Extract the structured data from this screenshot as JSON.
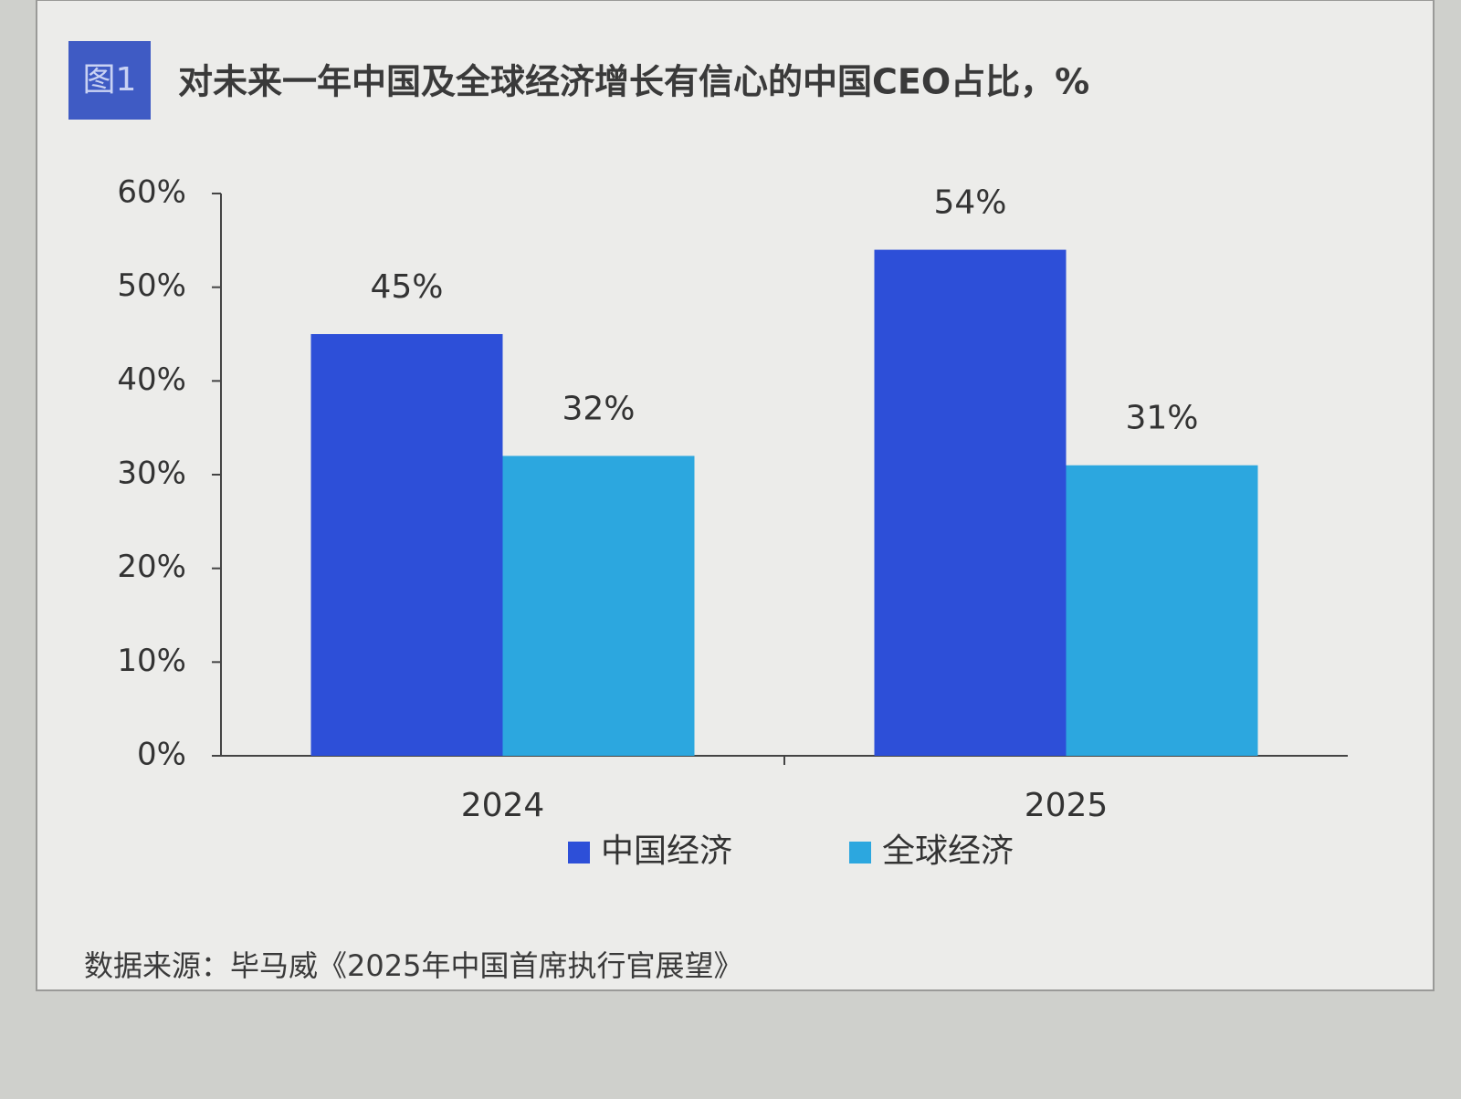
{
  "chart_data": {
    "type": "bar",
    "figure_label": "图1",
    "title": "对未来一年中国及全球经济增长有信心的中国CEO占比，%",
    "categories": [
      "2024",
      "2025"
    ],
    "series": [
      {
        "name": "中国经济",
        "color": "#2d4fd8",
        "values": [
          45,
          54
        ],
        "value_labels": [
          "45%",
          "54%"
        ]
      },
      {
        "name": "全球经济",
        "color": "#2ca7df",
        "values": [
          32,
          31
        ],
        "value_labels": [
          "32%",
          "31%"
        ]
      }
    ],
    "ylim": [
      0,
      60
    ],
    "yticks": [
      {
        "value": 0,
        "label": "0%"
      },
      {
        "value": 10,
        "label": "10%"
      },
      {
        "value": 20,
        "label": "20%"
      },
      {
        "value": 30,
        "label": "30%"
      },
      {
        "value": 40,
        "label": "40%"
      },
      {
        "value": 50,
        "label": "50%"
      },
      {
        "value": 60,
        "label": "60%"
      }
    ],
    "grid": false,
    "legend": "bottom",
    "source": "数据来源：毕马威《2025年中国首席执行官展望》"
  }
}
